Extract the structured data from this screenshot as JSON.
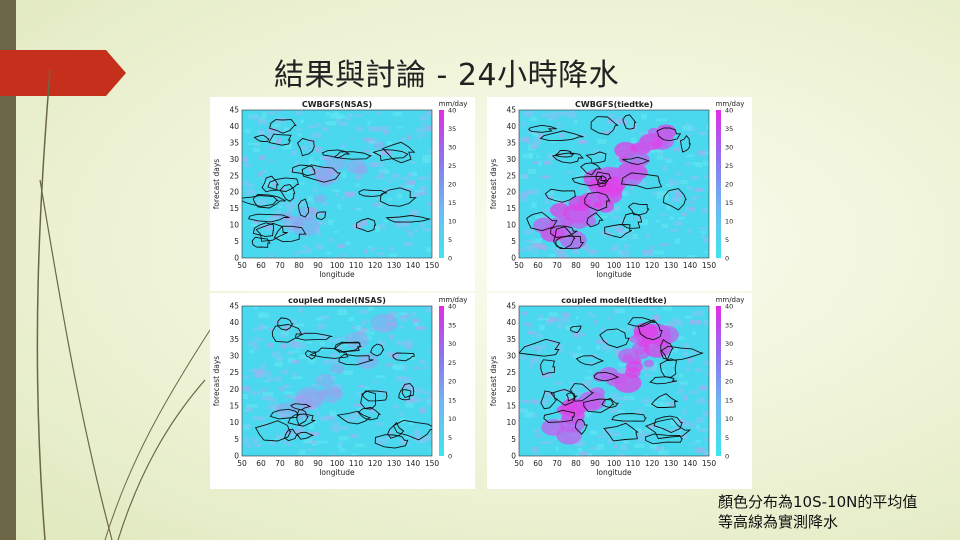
{
  "slide": {
    "title": "結果與討論 - 24小時降水",
    "caption_line1": "顏色分布為10S-10N的平均值",
    "caption_line2": "等高線為實測降水"
  },
  "colors": {
    "accent": "#c4301b",
    "sidebar": "#6b6746",
    "cyan": "#45dcf0",
    "magenta": "#e040e8"
  },
  "panels": [
    {
      "title": "CWBGFS(NSAS)",
      "intensity": 0.15
    },
    {
      "title": "CWBGFS(tiedtke)",
      "intensity": 1.0
    },
    {
      "title": "coupled model(NSAS)",
      "intensity": 0.2
    },
    {
      "title": "coupled model(tiedtke)",
      "intensity": 0.9
    }
  ],
  "axes": {
    "xlabel": "longitude",
    "ylabel": "forecast days",
    "x_ticks": [
      "50",
      "60",
      "70",
      "80",
      "90",
      "100",
      "110",
      "120",
      "130",
      "140",
      "150"
    ],
    "y_ticks": [
      "45",
      "40",
      "35",
      "30",
      "25",
      "20",
      "15",
      "10",
      "5",
      "0"
    ],
    "colorbar_unit": "mm/day",
    "colorbar_ticks": [
      "40",
      "35",
      "30",
      "25",
      "20",
      "15",
      "10",
      "5",
      "0"
    ]
  }
}
